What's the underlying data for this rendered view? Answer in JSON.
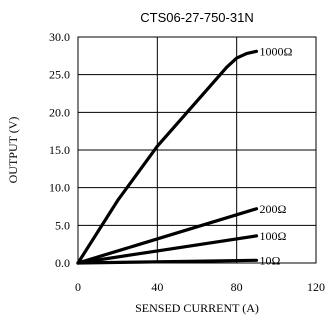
{
  "chart_data": {
    "type": "line",
    "title": "CTS06-27-750-31N",
    "xlabel": "SENSED CURRENT (A)",
    "ylabel": "OUTPUT (V)",
    "xlim": [
      0,
      120
    ],
    "ylim": [
      0,
      30
    ],
    "x_ticks": [
      "0",
      "40",
      "80",
      "120"
    ],
    "y_ticks": [
      "0.0",
      "5.0",
      "10.0",
      "15.0",
      "20.0",
      "25.0",
      "30.0"
    ],
    "grid": true,
    "series": [
      {
        "name": "1000Ω",
        "x": [
          0,
          20,
          40,
          60,
          75,
          80,
          85,
          90
        ],
        "y": [
          0,
          8.3,
          15.5,
          21.5,
          26.0,
          27.2,
          27.8,
          28.1
        ]
      },
      {
        "name": "200Ω",
        "x": [
          0,
          30,
          60,
          90
        ],
        "y": [
          0,
          2.4,
          4.8,
          7.2
        ]
      },
      {
        "name": "100Ω",
        "x": [
          0,
          30,
          60,
          90
        ],
        "y": [
          0,
          1.2,
          2.4,
          3.6
        ]
      },
      {
        "name": "10Ω",
        "x": [
          0,
          30,
          60,
          90
        ],
        "y": [
          0,
          0.12,
          0.24,
          0.36
        ]
      }
    ]
  }
}
